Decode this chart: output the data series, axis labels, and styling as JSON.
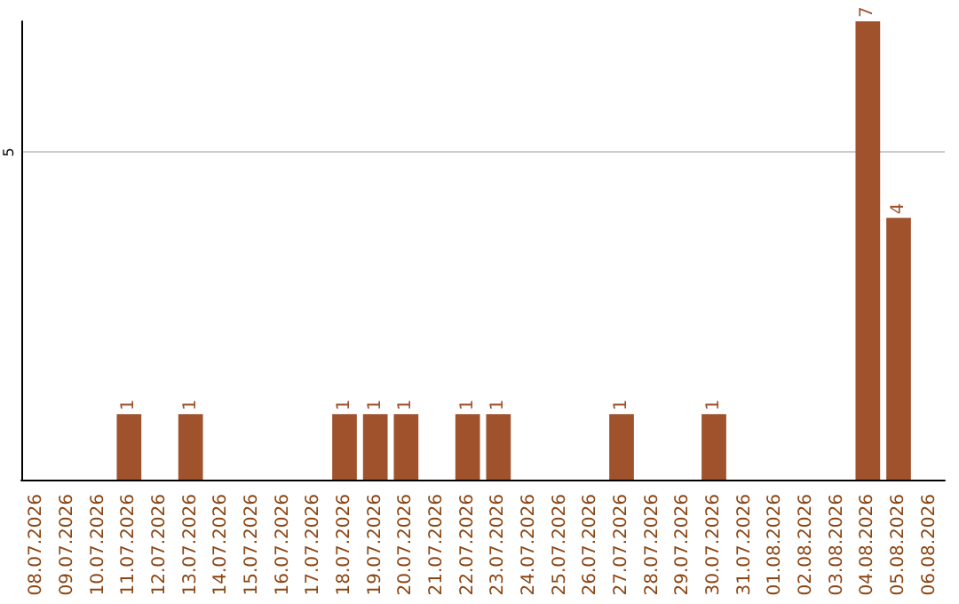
{
  "chart_data": {
    "type": "bar",
    "categories": [
      "08.07.2026",
      "09.07.2026",
      "10.07.2026",
      "11.07.2026",
      "12.07.2026",
      "13.07.2026",
      "14.07.2026",
      "15.07.2026",
      "16.07.2026",
      "17.07.2026",
      "18.07.2026",
      "19.07.2026",
      "20.07.2026",
      "21.07.2026",
      "22.07.2026",
      "23.07.2026",
      "24.07.2026",
      "25.07.2026",
      "26.07.2026",
      "27.07.2026",
      "28.07.2026",
      "29.07.2026",
      "30.07.2026",
      "31.07.2026",
      "01.08.2026",
      "02.08.2026",
      "03.08.2026",
      "04.08.2026",
      "05.08.2026",
      "06.08.2026"
    ],
    "values": [
      0,
      0,
      0,
      1,
      0,
      1,
      0,
      0,
      0,
      0,
      1,
      1,
      1,
      0,
      1,
      1,
      0,
      0,
      0,
      1,
      0,
      0,
      1,
      0,
      0,
      0,
      0,
      7,
      4,
      0
    ],
    "value_labels": [
      null,
      null,
      null,
      "1",
      null,
      "1",
      null,
      null,
      null,
      null,
      "1",
      "1",
      "1",
      null,
      "1",
      "1",
      null,
      null,
      null,
      "1",
      null,
      null,
      "1",
      null,
      null,
      null,
      null,
      "7",
      "4",
      null
    ],
    "color": "#a0522d",
    "ylim": [
      0,
      7
    ],
    "yticks": [
      5
    ],
    "grid": "y"
  }
}
